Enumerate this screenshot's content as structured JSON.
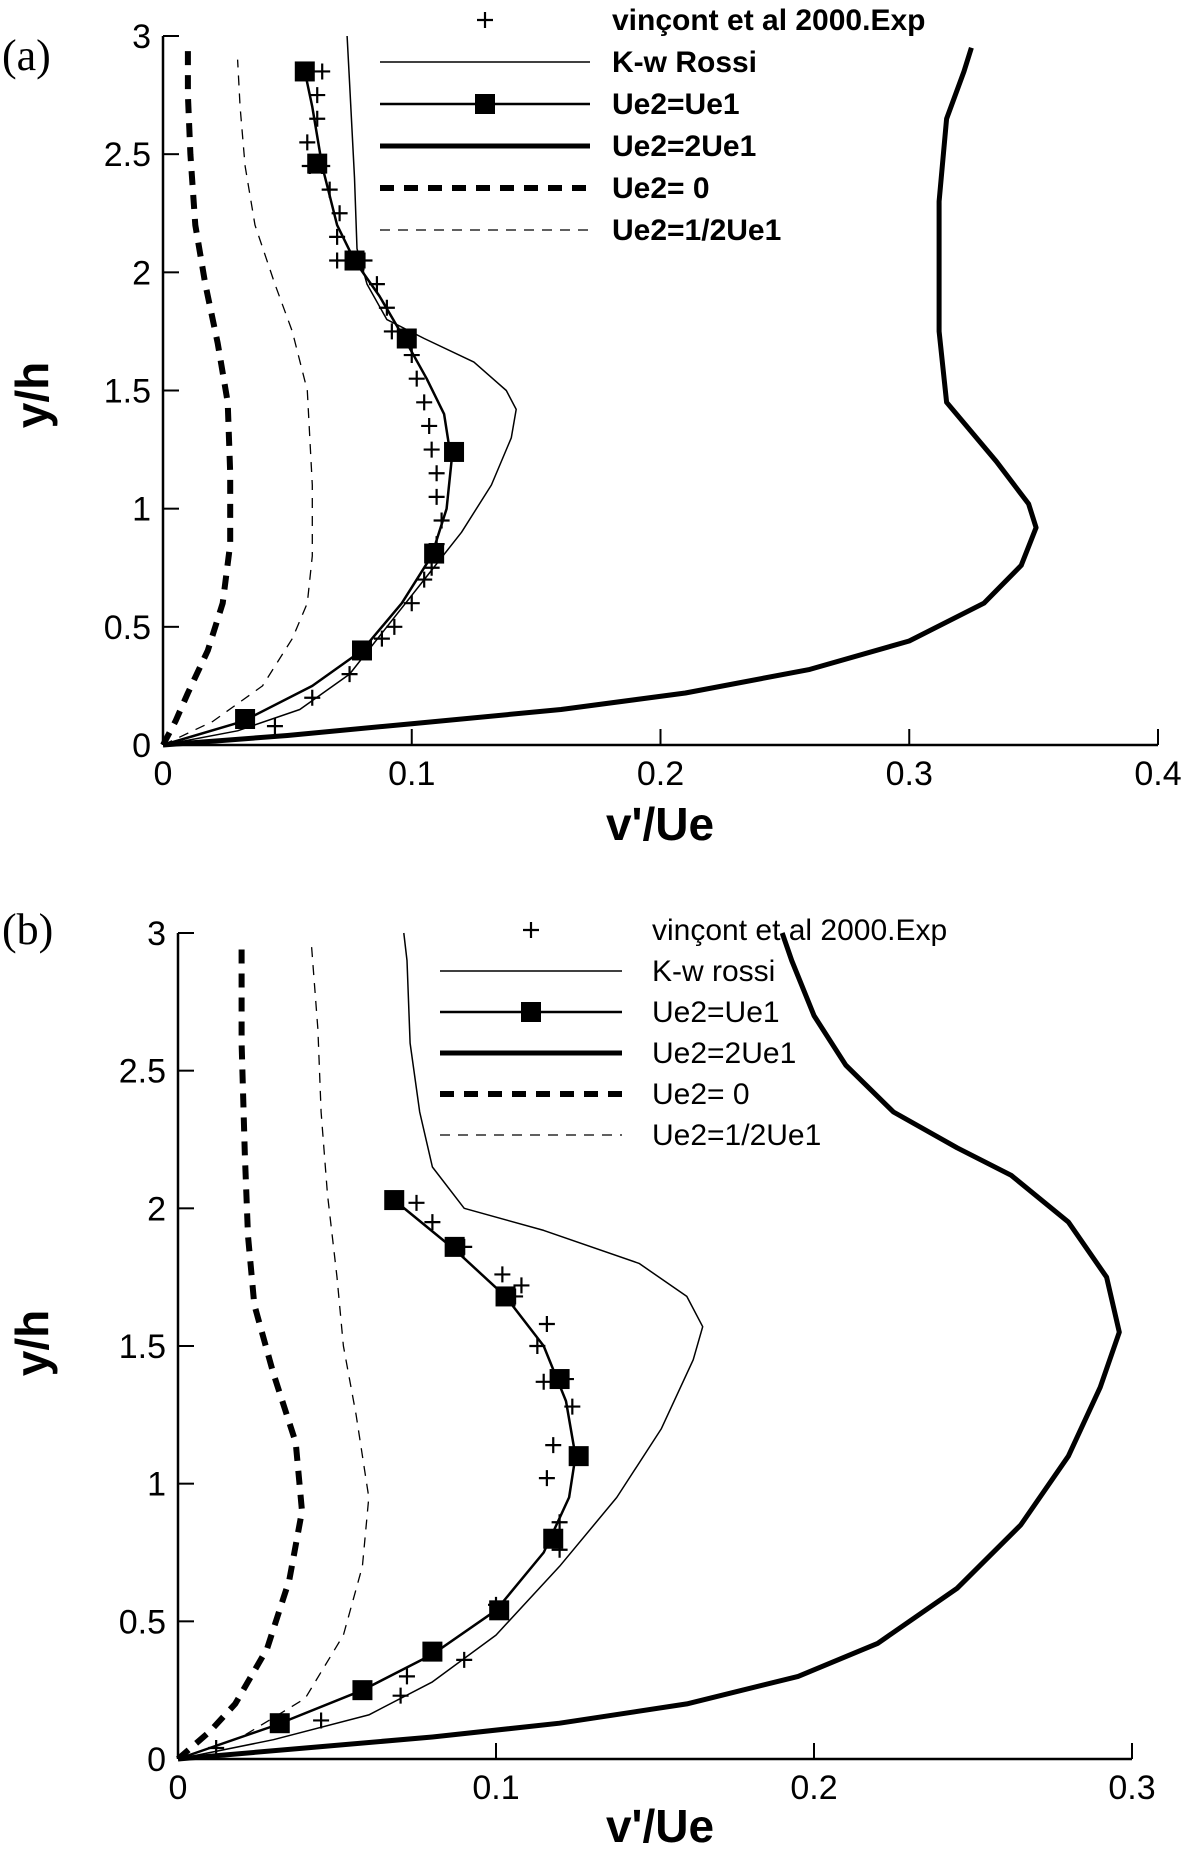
{
  "chart_data": [
    {
      "panel_label": "(a)",
      "type": "line",
      "xlabel": "v'/Ue",
      "ylabel": "y/h",
      "xlim": [
        0,
        0.4
      ],
      "ylim": [
        0,
        3
      ],
      "xticks": [
        0,
        0.1,
        0.2,
        0.3,
        0.4
      ],
      "xtick_labels": [
        "0",
        "0.1",
        "0.2",
        "0.3",
        "0.4"
      ],
      "yticks": [
        0,
        0.5,
        1,
        1.5,
        2,
        2.5,
        3
      ],
      "ytick_labels": [
        "0",
        "0.5",
        "1",
        "1.5",
        "2",
        "2.5",
        "3"
      ],
      "legend_position": "top-right",
      "series": [
        {
          "name": "vinçont et al 2000.Exp",
          "style": "cross-markers",
          "points": [
            [
              0.045,
              0.08
            ],
            [
              0.06,
              0.2
            ],
            [
              0.075,
              0.3
            ],
            [
              0.088,
              0.45
            ],
            [
              0.093,
              0.5
            ],
            [
              0.1,
              0.6
            ],
            [
              0.105,
              0.7
            ],
            [
              0.108,
              0.75
            ],
            [
              0.11,
              0.85
            ],
            [
              0.112,
              0.95
            ],
            [
              0.11,
              1.05
            ],
            [
              0.11,
              1.15
            ],
            [
              0.108,
              1.25
            ],
            [
              0.107,
              1.35
            ],
            [
              0.105,
              1.45
            ],
            [
              0.102,
              1.55
            ],
            [
              0.1,
              1.65
            ],
            [
              0.092,
              1.75
            ],
            [
              0.09,
              1.85
            ],
            [
              0.086,
              1.95
            ],
            [
              0.081,
              2.05
            ],
            [
              0.07,
              2.05
            ],
            [
              0.07,
              2.15
            ],
            [
              0.071,
              2.25
            ],
            [
              0.067,
              2.35
            ],
            [
              0.064,
              2.45
            ],
            [
              0.059,
              2.45
            ],
            [
              0.058,
              2.55
            ],
            [
              0.062,
              2.65
            ],
            [
              0.062,
              2.75
            ],
            [
              0.064,
              2.85
            ]
          ]
        },
        {
          "name": "K-w Rossi",
          "style": "thin-solid",
          "points": [
            [
              0,
              0
            ],
            [
              0.03,
              0.06
            ],
            [
              0.055,
              0.15
            ],
            [
              0.075,
              0.3
            ],
            [
              0.09,
              0.5
            ],
            [
              0.105,
              0.7
            ],
            [
              0.12,
              0.9
            ],
            [
              0.132,
              1.1
            ],
            [
              0.14,
              1.3
            ],
            [
              0.142,
              1.42
            ],
            [
              0.138,
              1.5
            ],
            [
              0.125,
              1.62
            ],
            [
              0.105,
              1.72
            ],
            [
              0.09,
              1.8
            ],
            [
              0.082,
              1.95
            ],
            [
              0.078,
              2.1
            ],
            [
              0.077,
              2.4
            ],
            [
              0.075,
              2.8
            ],
            [
              0.074,
              3
            ]
          ]
        },
        {
          "name": "Ue2=Ue1",
          "style": "solid-square-markers",
          "points": [
            [
              0,
              0
            ],
            [
              0.032,
              0.1
            ],
            [
              0.06,
              0.25
            ],
            [
              0.08,
              0.4
            ],
            [
              0.096,
              0.6
            ],
            [
              0.108,
              0.8
            ],
            [
              0.114,
              1.0
            ],
            [
              0.116,
              1.2
            ],
            [
              0.113,
              1.4
            ],
            [
              0.106,
              1.55
            ],
            [
              0.097,
              1.72
            ],
            [
              0.087,
              1.9
            ],
            [
              0.077,
              2.05
            ],
            [
              0.07,
              2.2
            ],
            [
              0.064,
              2.45
            ],
            [
              0.06,
              2.7
            ],
            [
              0.057,
              2.85
            ]
          ],
          "marker_points": [
            [
              0.033,
              0.11
            ],
            [
              0.08,
              0.4
            ],
            [
              0.109,
              0.81
            ],
            [
              0.117,
              1.24
            ],
            [
              0.098,
              1.72
            ],
            [
              0.077,
              2.05
            ],
            [
              0.062,
              2.46
            ],
            [
              0.057,
              2.85
            ]
          ]
        },
        {
          "name": "Ue2=2Ue1",
          "style": "thick-solid",
          "points": [
            [
              0,
              0
            ],
            [
              0.05,
              0.04
            ],
            [
              0.1,
              0.09
            ],
            [
              0.16,
              0.15
            ],
            [
              0.21,
              0.22
            ],
            [
              0.26,
              0.32
            ],
            [
              0.3,
              0.44
            ],
            [
              0.33,
              0.6
            ],
            [
              0.345,
              0.76
            ],
            [
              0.351,
              0.92
            ],
            [
              0.348,
              1.02
            ],
            [
              0.335,
              1.2
            ],
            [
              0.315,
              1.45
            ],
            [
              0.312,
              1.75
            ],
            [
              0.312,
              2.3
            ],
            [
              0.315,
              2.65
            ],
            [
              0.322,
              2.85
            ],
            [
              0.325,
              2.95
            ]
          ]
        },
        {
          "name": "Ue2= 0",
          "style": "thick-dashed",
          "points": [
            [
              0,
              0
            ],
            [
              0.005,
              0.1
            ],
            [
              0.01,
              0.22
            ],
            [
              0.018,
              0.4
            ],
            [
              0.024,
              0.6
            ],
            [
              0.027,
              0.85
            ],
            [
              0.027,
              1.15
            ],
            [
              0.026,
              1.45
            ],
            [
              0.022,
              1.7
            ],
            [
              0.017,
              1.95
            ],
            [
              0.013,
              2.2
            ],
            [
              0.011,
              2.5
            ],
            [
              0.01,
              2.75
            ],
            [
              0.01,
              2.95
            ]
          ]
        },
        {
          "name": "Ue2=1/2Ue1",
          "style": "thin-dashed",
          "points": [
            [
              0,
              0
            ],
            [
              0.02,
              0.1
            ],
            [
              0.04,
              0.25
            ],
            [
              0.052,
              0.45
            ],
            [
              0.058,
              0.6
            ],
            [
              0.06,
              0.8
            ],
            [
              0.06,
              1.1
            ],
            [
              0.058,
              1.5
            ],
            [
              0.052,
              1.75
            ],
            [
              0.045,
              1.95
            ],
            [
              0.037,
              2.2
            ],
            [
              0.033,
              2.45
            ],
            [
              0.031,
              2.7
            ],
            [
              0.03,
              2.9
            ]
          ]
        }
      ]
    },
    {
      "panel_label": "(b)",
      "type": "line",
      "xlabel": "v'/Ue",
      "ylabel": "y/h",
      "xlim": [
        0,
        0.3
      ],
      "ylim": [
        0,
        3
      ],
      "xticks": [
        0,
        0.1,
        0.2,
        0.3
      ],
      "xtick_labels": [
        "0",
        "0.1",
        "0.2",
        "0.3"
      ],
      "yticks": [
        0,
        0.5,
        1,
        1.5,
        2,
        2.5,
        3
      ],
      "ytick_labels": [
        "0",
        "0.5",
        "1",
        "1.5",
        "2",
        "2.5",
        "3"
      ],
      "legend_position": "top-right",
      "series": [
        {
          "name": "vinçont et al 2000.Exp",
          "style": "cross-markers",
          "points": [
            [
              0.012,
              0.04
            ],
            [
              0.045,
              0.14
            ],
            [
              0.07,
              0.23
            ],
            [
              0.072,
              0.3
            ],
            [
              0.09,
              0.36
            ],
            [
              0.1,
              0.56
            ],
            [
              0.12,
              0.76
            ],
            [
              0.12,
              0.86
            ],
            [
              0.116,
              1.02
            ],
            [
              0.118,
              1.14
            ],
            [
              0.124,
              1.28
            ],
            [
              0.122,
              1.38
            ],
            [
              0.115,
              1.37
            ],
            [
              0.113,
              1.5
            ],
            [
              0.116,
              1.58
            ],
            [
              0.106,
              1.68
            ],
            [
              0.108,
              1.72
            ],
            [
              0.102,
              1.76
            ],
            [
              0.09,
              1.86
            ],
            [
              0.08,
              1.95
            ],
            [
              0.075,
              2.02
            ]
          ]
        },
        {
          "name": "K-w rossi",
          "style": "thin-solid",
          "points": [
            [
              0,
              0
            ],
            [
              0.03,
              0.07
            ],
            [
              0.06,
              0.16
            ],
            [
              0.08,
              0.28
            ],
            [
              0.1,
              0.45
            ],
            [
              0.12,
              0.7
            ],
            [
              0.138,
              0.95
            ],
            [
              0.152,
              1.2
            ],
            [
              0.162,
              1.45
            ],
            [
              0.165,
              1.57
            ],
            [
              0.16,
              1.68
            ],
            [
              0.145,
              1.8
            ],
            [
              0.115,
              1.92
            ],
            [
              0.09,
              2.0
            ],
            [
              0.08,
              2.15
            ],
            [
              0.076,
              2.35
            ],
            [
              0.073,
              2.6
            ],
            [
              0.072,
              2.9
            ],
            [
              0.071,
              3
            ]
          ]
        },
        {
          "name": "Ue2=Ue1",
          "style": "solid-square-markers",
          "points": [
            [
              0,
              0
            ],
            [
              0.03,
              0.12
            ],
            [
              0.058,
              0.25
            ],
            [
              0.08,
              0.38
            ],
            [
              0.1,
              0.54
            ],
            [
              0.115,
              0.75
            ],
            [
              0.123,
              0.95
            ],
            [
              0.125,
              1.1
            ],
            [
              0.122,
              1.3
            ],
            [
              0.115,
              1.5
            ],
            [
              0.103,
              1.68
            ],
            [
              0.087,
              1.85
            ],
            [
              0.068,
              2.03
            ]
          ],
          "marker_points": [
            [
              0.032,
              0.13
            ],
            [
              0.058,
              0.25
            ],
            [
              0.08,
              0.39
            ],
            [
              0.101,
              0.54
            ],
            [
              0.118,
              0.8
            ],
            [
              0.126,
              1.1
            ],
            [
              0.12,
              1.38
            ],
            [
              0.103,
              1.68
            ],
            [
              0.087,
              1.86
            ],
            [
              0.068,
              2.03
            ]
          ]
        },
        {
          "name": "Ue2=2Ue1",
          "style": "thick-solid",
          "points": [
            [
              0,
              0
            ],
            [
              0.04,
              0.04
            ],
            [
              0.08,
              0.08
            ],
            [
              0.12,
              0.13
            ],
            [
              0.16,
              0.2
            ],
            [
              0.195,
              0.3
            ],
            [
              0.22,
              0.42
            ],
            [
              0.245,
              0.62
            ],
            [
              0.265,
              0.85
            ],
            [
              0.28,
              1.1
            ],
            [
              0.29,
              1.35
            ],
            [
              0.296,
              1.55
            ],
            [
              0.292,
              1.75
            ],
            [
              0.28,
              1.95
            ],
            [
              0.262,
              2.12
            ],
            [
              0.245,
              2.22
            ],
            [
              0.225,
              2.35
            ],
            [
              0.21,
              2.52
            ],
            [
              0.2,
              2.7
            ],
            [
              0.193,
              2.9
            ],
            [
              0.19,
              3
            ]
          ]
        },
        {
          "name": "Ue2= 0",
          "style": "thick-dashed",
          "points": [
            [
              0,
              0
            ],
            [
              0.01,
              0.1
            ],
            [
              0.018,
              0.2
            ],
            [
              0.028,
              0.4
            ],
            [
              0.035,
              0.65
            ],
            [
              0.039,
              0.9
            ],
            [
              0.037,
              1.15
            ],
            [
              0.03,
              1.4
            ],
            [
              0.024,
              1.65
            ],
            [
              0.022,
              1.9
            ],
            [
              0.021,
              2.2
            ],
            [
              0.02,
              2.6
            ],
            [
              0.02,
              2.95
            ]
          ]
        },
        {
          "name": "Ue2=1/2Ue1",
          "style": "thin-dashed",
          "points": [
            [
              0,
              0
            ],
            [
              0.02,
              0.08
            ],
            [
              0.04,
              0.22
            ],
            [
              0.052,
              0.45
            ],
            [
              0.058,
              0.7
            ],
            [
              0.06,
              0.95
            ],
            [
              0.056,
              1.25
            ],
            [
              0.052,
              1.5
            ],
            [
              0.05,
              1.75
            ],
            [
              0.047,
              2.05
            ],
            [
              0.045,
              2.35
            ],
            [
              0.044,
              2.65
            ],
            [
              0.042,
              2.95
            ]
          ]
        }
      ]
    }
  ]
}
